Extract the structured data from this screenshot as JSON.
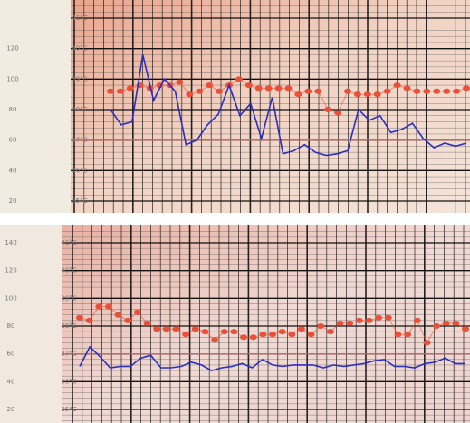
{
  "chart_data": [
    {
      "type": "line",
      "ylim": [
        20,
        140
      ],
      "yticks": [
        20,
        40,
        60,
        80,
        100,
        120
      ],
      "y2lim": [
        35,
        41
      ],
      "y2ticks": [
        {
          "value": 35,
          "label": "35°C"
        },
        {
          "value": 36,
          "label": "36°C"
        },
        {
          "value": 37,
          "label": "37°C"
        },
        {
          "value": 38,
          "label": "38°C"
        },
        {
          "value": 39,
          "label": "39°C"
        },
        {
          "value": 40,
          "label": "40°C"
        },
        {
          "value": 41,
          "label": "41°C"
        }
      ],
      "reference_line": {
        "axis": "y2",
        "value": 37,
        "color": "#f07070"
      },
      "grid": true,
      "series": [
        {
          "color": "#e8503a",
          "axis": "y2",
          "marker": "circle",
          "values": [
            38.6,
            38.6,
            38.7,
            38.8,
            38.7,
            38.8,
            38.8,
            38.9,
            38.5,
            38.6,
            38.8,
            38.6,
            38.8,
            39.0,
            38.8,
            38.7,
            38.7,
            38.7,
            38.7,
            38.5,
            38.6,
            38.6,
            38.0,
            37.9,
            38.6,
            38.5,
            38.5,
            38.5,
            38.6,
            38.8,
            38.7,
            38.6,
            38.6,
            38.6,
            38.6,
            38.6,
            38.7
          ]
        },
        {
          "color": "#2a2fc0",
          "axis": "y",
          "marker": "none",
          "values": [
            80,
            70,
            72,
            116,
            86,
            100,
            92,
            57,
            60,
            70,
            77,
            96,
            76,
            84,
            61,
            88,
            51,
            53,
            57,
            52,
            50,
            51,
            53,
            80,
            73,
            76,
            65,
            67,
            71,
            61,
            55,
            58,
            56,
            58
          ]
        }
      ]
    },
    {
      "type": "line",
      "ylim": [
        20,
        140
      ],
      "yticks": [
        20,
        40,
        60,
        80,
        100,
        120,
        140
      ],
      "y2lim": [
        35,
        41
      ],
      "y2ticks": [
        {
          "value": 35,
          "label": "35°C"
        },
        {
          "value": 36,
          "label": "36°C"
        },
        {
          "value": 37,
          "label": "37°C"
        },
        {
          "value": 38,
          "label": "38°C"
        },
        {
          "value": 39,
          "label": "39°C"
        },
        {
          "value": 40,
          "label": "40°C"
        },
        {
          "value": 41,
          "label": "41°C"
        }
      ],
      "reference_line": {
        "axis": "y2",
        "value": 37,
        "color": "#f07070"
      },
      "grid": true,
      "series": [
        {
          "color": "#e8503a",
          "axis": "y2",
          "marker": "circle",
          "values": [
            38.3,
            38.2,
            38.7,
            38.7,
            38.4,
            38.2,
            38.5,
            38.1,
            37.9,
            37.9,
            37.9,
            37.7,
            37.9,
            37.8,
            37.5,
            37.8,
            37.8,
            37.6,
            37.6,
            37.7,
            37.7,
            37.8,
            37.7,
            37.9,
            37.7,
            38.0,
            37.8,
            38.1,
            38.1,
            38.2,
            38.2,
            38.3,
            38.3,
            37.7,
            37.7,
            38.2,
            37.4,
            38.0,
            38.1,
            38.1,
            37.9
          ]
        },
        {
          "color": "#2a2fc0",
          "axis": "y",
          "marker": "none",
          "values": [
            51,
            65,
            58,
            50,
            51,
            51,
            57,
            59,
            50,
            50,
            51,
            54,
            52,
            48,
            50,
            51,
            53,
            50,
            56,
            52,
            51,
            52,
            52,
            52,
            50,
            52,
            51,
            52,
            53,
            55,
            56,
            51,
            51,
            50,
            53,
            54,
            57,
            53,
            53
          ]
        }
      ]
    }
  ]
}
